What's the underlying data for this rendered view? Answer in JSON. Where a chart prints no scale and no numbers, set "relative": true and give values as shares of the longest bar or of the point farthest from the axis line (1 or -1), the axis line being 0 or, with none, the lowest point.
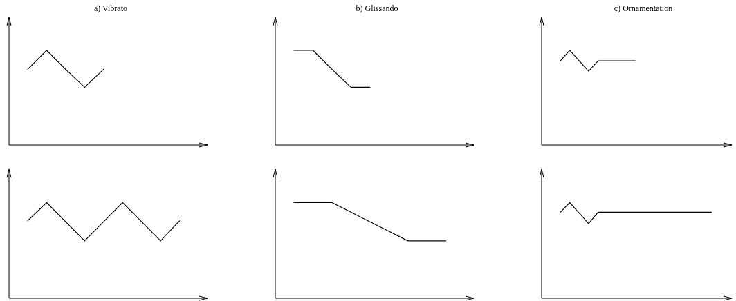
{
  "chart_data": [
    {
      "type": "line",
      "title": "a) Vibrato",
      "relative": true,
      "color": "#000000",
      "categories": [
        null,
        null,
        null,
        null,
        null
      ],
      "values": [
        0.8,
        1,
        0.8,
        0.61,
        0.8
      ]
    },
    {
      "type": "line",
      "title": "b) Glissando",
      "relative": true,
      "color": "#000000",
      "categories": [
        null,
        null,
        null,
        null,
        null
      ],
      "values": [
        1,
        1,
        0.8,
        0.61,
        0.61
      ]
    },
    {
      "type": "line",
      "title": "c) Ornamentation",
      "relative": true,
      "color": "#000000",
      "categories": [
        null,
        null,
        null,
        null,
        null,
        null,
        null,
        null,
        null
      ],
      "values": [
        0.89,
        1,
        0.89,
        0.78,
        0.89,
        0.89,
        0.89,
        0.89,
        0.89
      ]
    },
    {
      "type": "line",
      "relative": true,
      "color": "#000000",
      "categories": [
        null,
        null,
        null,
        null,
        null,
        null,
        null,
        null,
        null
      ],
      "values": [
        0.81,
        1,
        0.8,
        0.6,
        0.8,
        1,
        0.8,
        0.6,
        0.81
      ]
    },
    {
      "type": "line",
      "relative": true,
      "color": "#000000",
      "categories": [
        null,
        null,
        null,
        null,
        null,
        null,
        null,
        null,
        null
      ],
      "values": [
        1,
        1,
        1,
        0.9,
        0.8,
        0.7,
        0.6,
        0.6,
        0.6
      ]
    },
    {
      "type": "line",
      "relative": true,
      "color": "#000000",
      "categories": [
        null,
        null,
        null,
        null,
        null,
        null,
        null,
        null,
        null,
        null,
        null,
        null,
        null,
        null,
        null,
        null,
        null
      ],
      "values": [
        0.9,
        1,
        0.89,
        0.78,
        0.9,
        0.9,
        0.9,
        0.9,
        0.9,
        0.9,
        0.9,
        0.9,
        0.9,
        0.9,
        0.9,
        0.9,
        0.9
      ]
    }
  ]
}
